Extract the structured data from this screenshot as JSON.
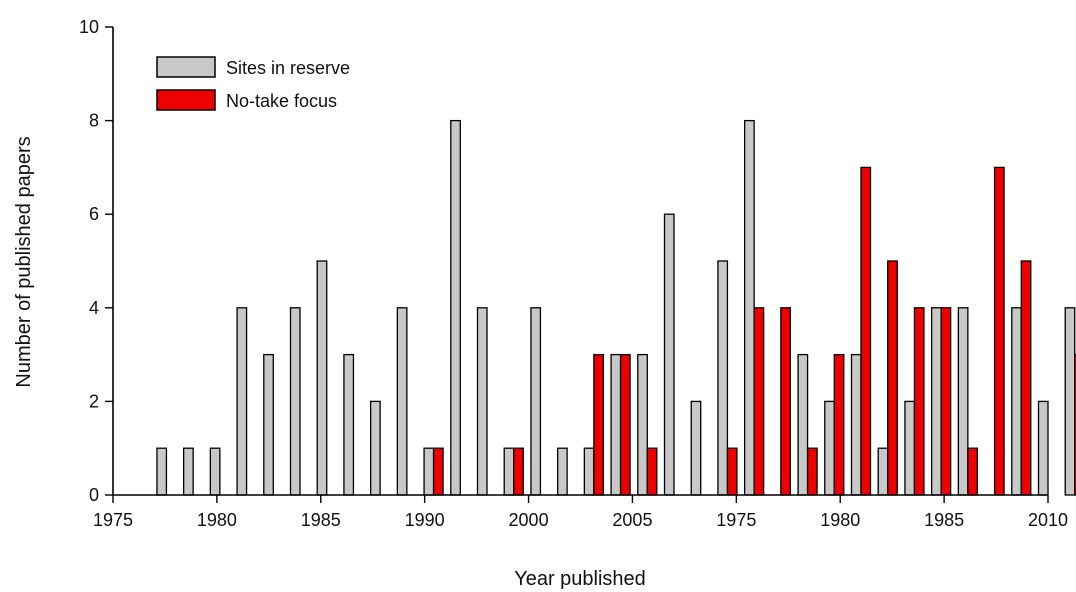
{
  "chart_data": {
    "type": "bar",
    "title": "",
    "xlabel": "Year published",
    "ylabel": "Number of published papers",
    "ylim": [
      0,
      10
    ],
    "yticks": [
      "0",
      "2",
      "4",
      "6",
      "8",
      "10"
    ],
    "xticks": [
      "1975",
      "1980",
      "1985",
      "1990",
      "2000",
      "2005",
      "1975",
      "1980",
      "1985",
      "2010"
    ],
    "legend": {
      "placement": "top-left"
    },
    "categories": [
      1977,
      1978,
      1979,
      1980,
      1981,
      1982,
      1983,
      1984,
      1985,
      1986,
      1987,
      1988,
      1989,
      1990,
      1991,
      1992,
      1993,
      1994,
      1995,
      1996,
      1997,
      1998,
      1999,
      2000,
      2001,
      2002,
      2003,
      2004,
      2005,
      2006,
      2007,
      2008,
      2009,
      2010,
      2011
    ],
    "series": [
      {
        "name": "Sites in reserve",
        "color": "#c8c8c8",
        "values": [
          1,
          1,
          1,
          4,
          3,
          4,
          5,
          3,
          2,
          4,
          1,
          8,
          4,
          1,
          4,
          1,
          1,
          3,
          3,
          6,
          2,
          5,
          8,
          0,
          3,
          2,
          3,
          1,
          2,
          4,
          4,
          0,
          4,
          2,
          4
        ]
      },
      {
        "name": "No-take focus",
        "color": "#ee0000",
        "values": [
          0,
          0,
          0,
          0,
          0,
          0,
          0,
          0,
          0,
          0,
          1,
          0,
          0,
          1,
          0,
          0,
          3,
          3,
          1,
          0,
          0,
          1,
          4,
          4,
          1,
          3,
          7,
          5,
          4,
          4,
          1,
          7,
          5,
          0,
          3
        ]
      }
    ]
  }
}
